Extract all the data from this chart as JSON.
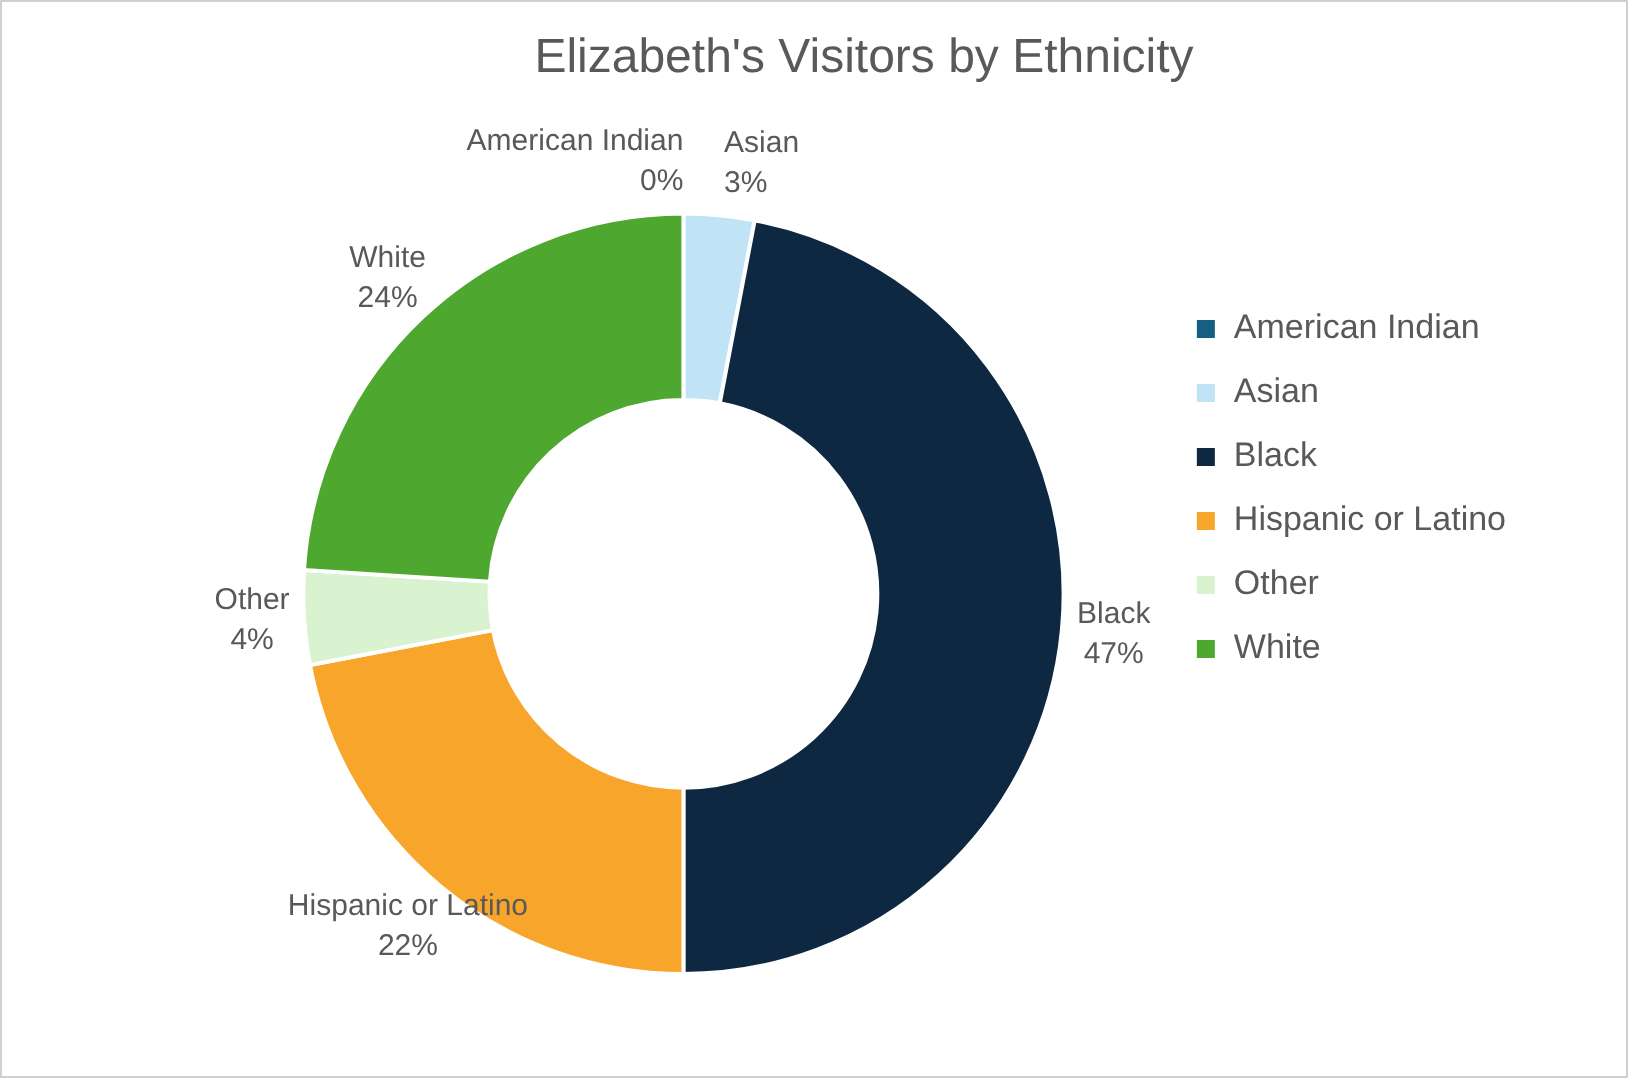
{
  "chart_data": {
    "type": "donut",
    "title": "Elizabeth's Visitors by Ethnicity",
    "categories": [
      "American Indian",
      "Asian",
      "Black",
      "Hispanic or Latino",
      "Other",
      "White"
    ],
    "values": [
      0,
      3,
      47,
      22,
      4,
      24
    ],
    "colors": [
      "#156082",
      "#c0e4f5",
      "#0e2841",
      "#f8a62b",
      "#d9f2d0",
      "#4ea72e"
    ],
    "value_labels": [
      "0%",
      "3%",
      "47%",
      "22%",
      "4%",
      "24%"
    ],
    "legend": "right"
  }
}
